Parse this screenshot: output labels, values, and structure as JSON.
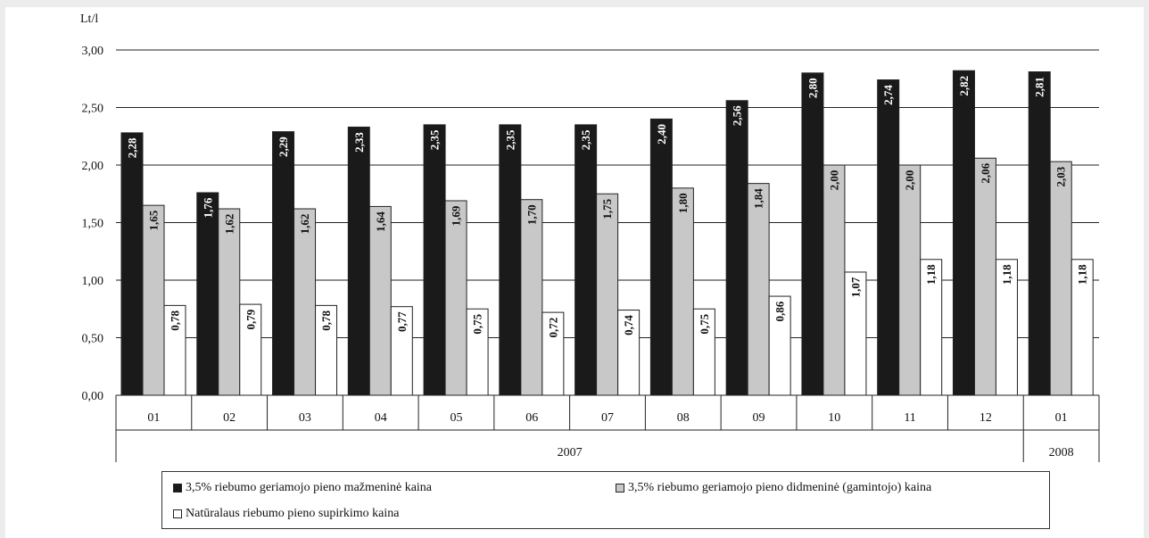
{
  "chart_data": {
    "type": "bar",
    "ylabel": "Lt/l",
    "ylim": [
      0,
      3
    ],
    "yticks": [
      "0,00",
      "0,50",
      "1,00",
      "1,50",
      "2,00",
      "2,50",
      "3,00"
    ],
    "grid": true,
    "legend_position": "bottom",
    "categories": [
      "01",
      "02",
      "03",
      "04",
      "05",
      "06",
      "07",
      "08",
      "09",
      "10",
      "11",
      "12",
      "01"
    ],
    "years": [
      {
        "label": "2007",
        "span": 12
      },
      {
        "label": "2008",
        "span": 1
      }
    ],
    "series": [
      {
        "name": "3,5% riebumo geriamojo pieno mažmeninė kaina",
        "color": "#1a1a1a",
        "label_color": "#ffffff",
        "values": [
          2.28,
          1.76,
          2.29,
          2.33,
          2.35,
          2.35,
          2.35,
          2.4,
          2.56,
          2.8,
          2.74,
          2.82,
          2.81
        ],
        "labels": [
          "2,28",
          "1,76",
          "2,29",
          "2,33",
          "2,35",
          "2,35",
          "2,35",
          "2,40",
          "2,56",
          "2,80",
          "2,74",
          "2,82",
          "2,81"
        ]
      },
      {
        "name": "3,5% riebumo geriamojo pieno didmeninė (gamintojo) kaina",
        "color": "#c8c8c8",
        "label_color": "#111111",
        "values": [
          1.65,
          1.62,
          1.62,
          1.64,
          1.69,
          1.7,
          1.75,
          1.8,
          1.84,
          2.0,
          2.0,
          2.06,
          2.03
        ],
        "labels": [
          "1,65",
          "1,62",
          "1,62",
          "1,64",
          "1,69",
          "1,70",
          "1,75",
          "1,80",
          "1,84",
          "2,00",
          "2,00",
          "2,06",
          "2,03"
        ]
      },
      {
        "name": "Natūralaus riebumo pieno supirkimo kaina",
        "color": "#ffffff",
        "label_color": "#111111",
        "values": [
          0.78,
          0.79,
          0.78,
          0.77,
          0.75,
          0.72,
          0.74,
          0.75,
          0.86,
          1.07,
          1.18,
          1.18,
          1.18
        ],
        "labels": [
          "0,78",
          "0,79",
          "0,78",
          "0,77",
          "0,75",
          "0,72",
          "0,74",
          "0,75",
          "0,86",
          "1,07",
          "1,18",
          "1,18",
          "1,18"
        ]
      }
    ]
  }
}
